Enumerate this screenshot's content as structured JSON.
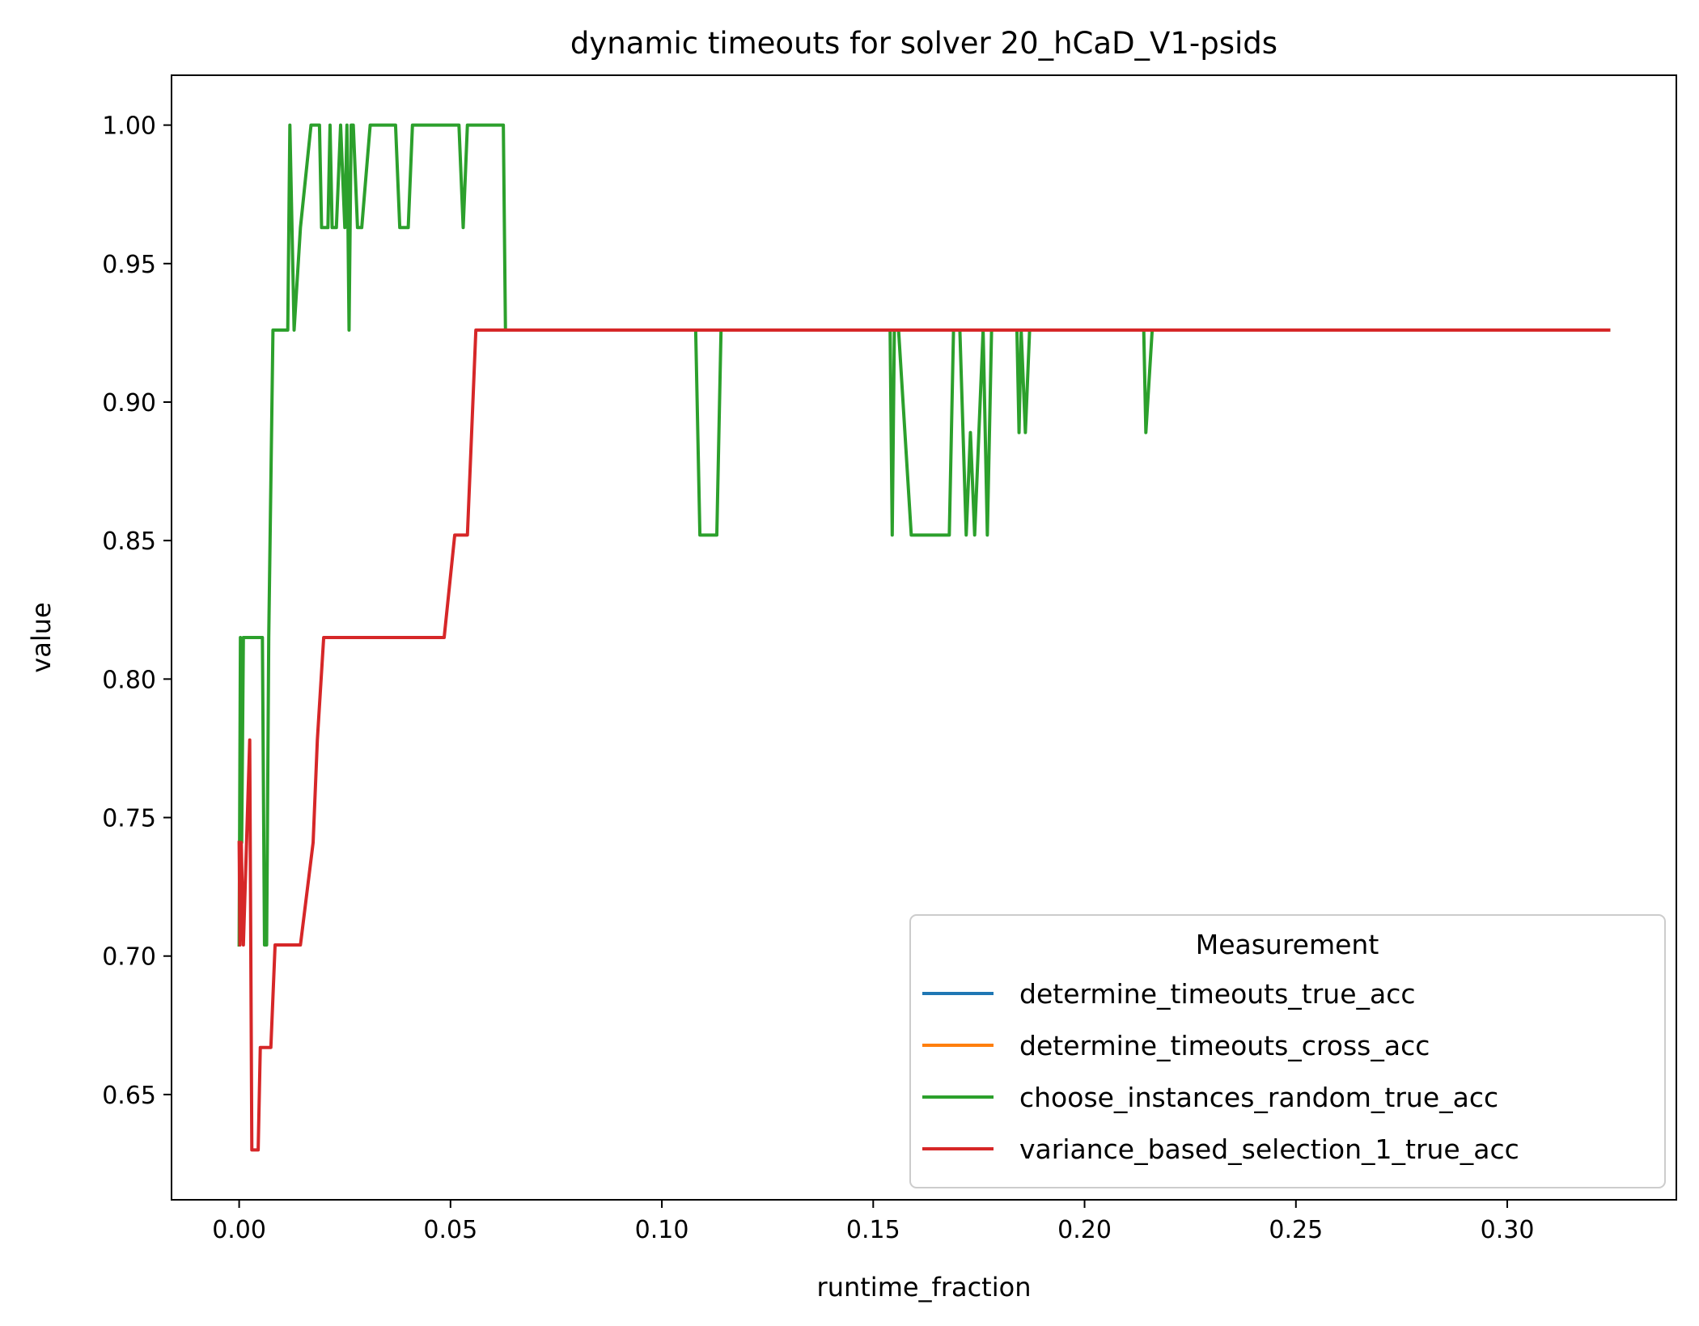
{
  "chart_data": {
    "type": "line",
    "title": "dynamic timeouts for solver 20_hCaD_V1-psids",
    "xlabel": "runtime_fraction",
    "ylabel": "value",
    "xlim": [
      -0.016,
      0.34
    ],
    "ylim": [
      0.612,
      1.018
    ],
    "xticks": [
      0.0,
      0.05,
      0.1,
      0.15,
      0.2,
      0.25,
      0.3
    ],
    "xtick_labels": [
      "0.00",
      "0.05",
      "0.10",
      "0.15",
      "0.20",
      "0.25",
      "0.30"
    ],
    "yticks": [
      0.65,
      0.7,
      0.75,
      0.8,
      0.85,
      0.9,
      0.95,
      1.0
    ],
    "ytick_labels": [
      "0.65",
      "0.70",
      "0.75",
      "0.80",
      "0.85",
      "0.90",
      "0.95",
      "1.00"
    ],
    "grid": false,
    "legend": {
      "title": "Measurement",
      "position": "lower-right"
    },
    "series": [
      {
        "name": "determine_timeouts_true_acc",
        "color": "#1f77b4",
        "x": [],
        "y": []
      },
      {
        "name": "determine_timeouts_cross_acc",
        "color": "#ff7f0e",
        "x": [],
        "y": []
      },
      {
        "name": "choose_instances_random_true_acc",
        "color": "#2ca02c",
        "x": [
          0.0,
          0.0003,
          0.0006,
          0.001,
          0.002,
          0.004,
          0.0055,
          0.006,
          0.0065,
          0.007,
          0.008,
          0.009,
          0.01,
          0.0115,
          0.012,
          0.013,
          0.0145,
          0.017,
          0.019,
          0.0195,
          0.021,
          0.0215,
          0.022,
          0.023,
          0.024,
          0.025,
          0.0255,
          0.026,
          0.0265,
          0.027,
          0.028,
          0.029,
          0.031,
          0.037,
          0.038,
          0.04,
          0.041,
          0.052,
          0.053,
          0.054,
          0.0625,
          0.063,
          0.108,
          0.109,
          0.113,
          0.114,
          0.154,
          0.1545,
          0.155,
          0.156,
          0.1575,
          0.159,
          0.168,
          0.169,
          0.1705,
          0.172,
          0.173,
          0.174,
          0.176,
          0.177,
          0.178,
          0.179,
          0.184,
          0.1845,
          0.185,
          0.186,
          0.187,
          0.214,
          0.2145,
          0.216,
          0.324
        ],
        "y": [
          0.704,
          0.815,
          0.741,
          0.815,
          0.815,
          0.815,
          0.815,
          0.704,
          0.704,
          0.815,
          0.926,
          0.926,
          0.926,
          0.926,
          1.0,
          0.926,
          0.963,
          1.0,
          1.0,
          0.963,
          0.963,
          1.0,
          0.963,
          0.963,
          1.0,
          0.963,
          1.0,
          0.926,
          1.0,
          1.0,
          0.963,
          0.963,
          1.0,
          1.0,
          0.963,
          0.963,
          1.0,
          1.0,
          0.963,
          1.0,
          1.0,
          0.926,
          0.926,
          0.852,
          0.852,
          0.926,
          0.926,
          0.852,
          0.926,
          0.926,
          0.889,
          0.852,
          0.852,
          0.926,
          0.926,
          0.852,
          0.889,
          0.852,
          0.926,
          0.852,
          0.926,
          0.926,
          0.926,
          0.889,
          0.926,
          0.889,
          0.926,
          0.926,
          0.889,
          0.926,
          0.926
        ]
      },
      {
        "name": "variance_based_selection_1_true_acc",
        "color": "#d62728",
        "x": [
          0.0,
          0.0002,
          0.0005,
          0.001,
          0.0025,
          0.003,
          0.0035,
          0.0045,
          0.005,
          0.0075,
          0.0085,
          0.0095,
          0.0125,
          0.0145,
          0.0175,
          0.0185,
          0.02,
          0.0215,
          0.0485,
          0.051,
          0.052,
          0.054,
          0.056,
          0.06,
          0.324
        ],
        "y": [
          0.741,
          0.704,
          0.741,
          0.704,
          0.778,
          0.63,
          0.63,
          0.63,
          0.667,
          0.667,
          0.704,
          0.704,
          0.704,
          0.704,
          0.741,
          0.778,
          0.815,
          0.815,
          0.815,
          0.852,
          0.852,
          0.852,
          0.926,
          0.926,
          0.926
        ]
      }
    ]
  }
}
